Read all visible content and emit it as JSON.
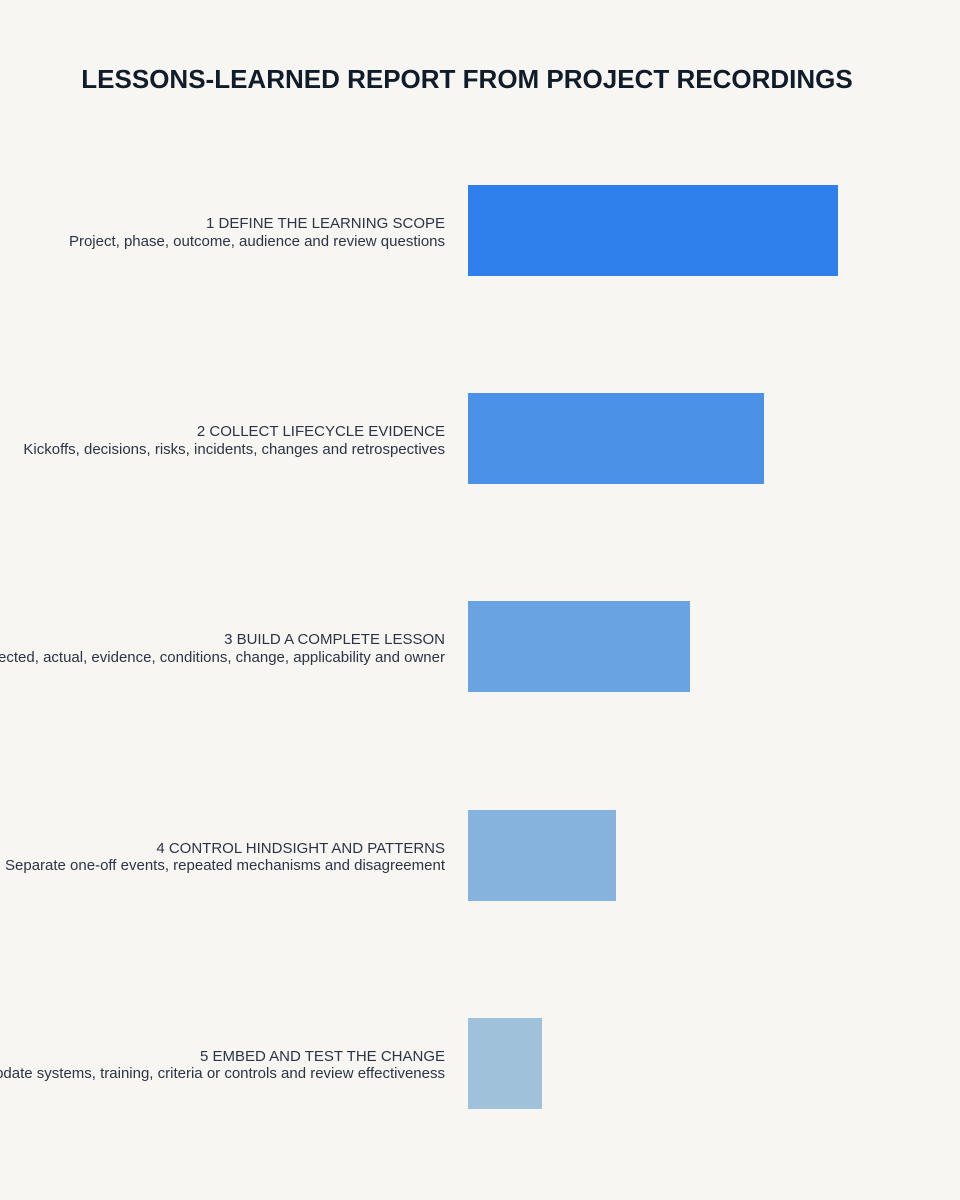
{
  "title": "LESSONS-LEARNED REPORT FROM PROJECT RECORDINGS",
  "steps": [
    {
      "label": "1 DEFINE THE LEARNING SCOPE",
      "description": "Project, phase, outcome, audience and review questions"
    },
    {
      "label": "2 COLLECT LIFECYCLE EVIDENCE",
      "description": "Kickoffs, decisions, risks, incidents, changes and retrospectives"
    },
    {
      "label": "3 BUILD A COMPLETE LESSON",
      "description": "Expected, actual, evidence, conditions, change, applicability and owner"
    },
    {
      "label": "4 CONTROL HINDSIGHT AND PATTERNS",
      "description": "Separate one-off events, repeated mechanisms and disagreement"
    },
    {
      "label": "5 EMBED AND TEST THE CHANGE",
      "description": "Update systems, training, criteria or controls and review effectiveness"
    }
  ]
}
